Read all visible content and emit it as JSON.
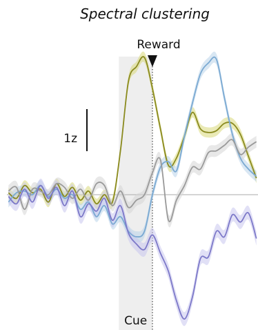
{
  "chart_data": {
    "type": "line",
    "title": "Spectral clustering",
    "xlabel": "",
    "ylabel": "",
    "grid": false,
    "legend": "none",
    "x_units": "time (arbitrary, reward at 0)",
    "xlim": [
      -9.1,
      6.6
    ],
    "ylim": [
      -7.4,
      7.7
    ],
    "baseline": 0,
    "cue_interval": [
      -2.1,
      0
    ],
    "reward_time": 0,
    "annotations": {
      "reward_label": "Reward",
      "cue_label": "Cue",
      "scale_bar_label": "1z",
      "scale_bar_value": 2.3
    },
    "x": [
      -9.0,
      -8.5,
      -8.0,
      -7.5,
      -7.0,
      -6.5,
      -6.0,
      -5.5,
      -5.0,
      -4.5,
      -4.0,
      -3.5,
      -3.0,
      -2.5,
      -2.0,
      -1.5,
      -1.0,
      -0.5,
      0.0,
      0.5,
      1.0,
      1.5,
      2.0,
      2.5,
      3.0,
      3.5,
      4.0,
      4.5,
      5.0,
      5.5,
      6.0,
      6.5
    ],
    "series": [
      {
        "color": "#8a8a1f",
        "band_color": "#d8d87a",
        "values": [
          0.1,
          -0.2,
          0.5,
          0.1,
          0.3,
          -0.4,
          0.6,
          -0.1,
          0.4,
          -0.3,
          0.2,
          -0.5,
          0.0,
          -0.4,
          2.4,
          6.2,
          7.0,
          7.5,
          5.8,
          3.6,
          1.6,
          2.0,
          3.2,
          4.5,
          3.6,
          3.4,
          3.5,
          3.9,
          3.9,
          3.3,
          2.1,
          0.9
        ],
        "band": 0.28
      },
      {
        "color": "#7aa9d2",
        "band_color": "#b9d3ea",
        "values": [
          -0.4,
          0.1,
          0.2,
          0.0,
          0.5,
          -0.1,
          0.3,
          -0.2,
          0.0,
          -0.8,
          -0.4,
          -1.2,
          -0.6,
          -1.6,
          -1.2,
          -2.0,
          -2.3,
          -2.0,
          0.0,
          1.5,
          1.8,
          1.3,
          3.2,
          5.0,
          6.6,
          7.2,
          7.4,
          5.3,
          3.3,
          2.0,
          1.4,
          1.0
        ],
        "band": 0.3
      },
      {
        "color": "#9a9a9a",
        "band_color": "#d6d6d6",
        "values": [
          0.2,
          0.4,
          -0.8,
          0.3,
          0.2,
          0.0,
          0.6,
          0.4,
          -0.2,
          0.3,
          -0.3,
          0.6,
          0.5,
          -0.6,
          0.2,
          -0.7,
          -0.3,
          0.0,
          1.2,
          1.9,
          -1.4,
          -0.3,
          0.5,
          1.5,
          1.4,
          2.3,
          2.4,
          2.7,
          3.0,
          2.2,
          2.6,
          2.9
        ],
        "band": 0.32
      },
      {
        "color": "#7c78c8",
        "band_color": "#c9c6ee",
        "values": [
          -0.1,
          -0.5,
          0.3,
          -0.4,
          0.5,
          -0.2,
          0.4,
          -0.6,
          0.2,
          -1.2,
          -0.5,
          -0.9,
          -0.2,
          -1.4,
          -0.6,
          -2.1,
          -2.7,
          -3.0,
          -2.2,
          -3.2,
          -4.2,
          -5.8,
          -6.8,
          -5.6,
          -3.5,
          -3.4,
          -2.0,
          -2.3,
          -1.1,
          -1.5,
          -1.0,
          -2.4
        ],
        "band": 0.38
      }
    ]
  }
}
